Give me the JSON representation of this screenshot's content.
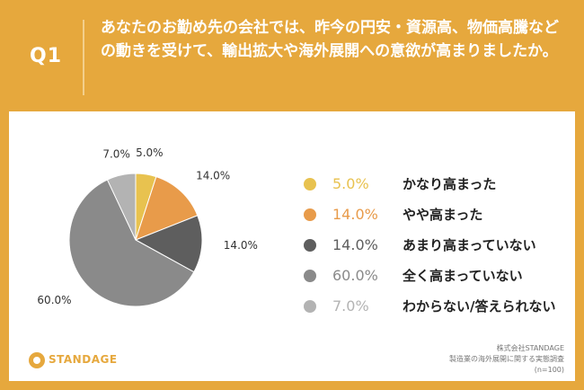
{
  "header": {
    "q_label": "Q1",
    "question": "あなたのお勤め先の会社では、昨今の円安・資源高、物価高騰などの動きを受けて、輸出拡大や海外展開への意欲が高まりましたか。"
  },
  "colors": {
    "background": "#e6a83d",
    "card": "#ffffff"
  },
  "chart_data": {
    "type": "pie",
    "slices": [
      {
        "label": "かなり高まった",
        "value": 5.0,
        "display": "5.0%",
        "color": "#e8c24f"
      },
      {
        "label": "やや高まった",
        "value": 14.0,
        "display": "14.0%",
        "color": "#e89b4a"
      },
      {
        "label": "あまり高まっていない",
        "value": 14.0,
        "display": "14.0%",
        "color": "#5e5e5e"
      },
      {
        "label": "全く高まっていない",
        "value": 60.0,
        "display": "60.0%",
        "color": "#8a8a8a"
      },
      {
        "label": "わからない/答えられない",
        "value": 7.0,
        "display": "7.0%",
        "color": "#b3b3b3"
      }
    ],
    "start_angle": "12 o'clock",
    "direction": "clockwise",
    "legend_placement": "right"
  },
  "legend": [
    {
      "pct": "5.0%",
      "label": "かなり高まった",
      "color": "#e8c24f"
    },
    {
      "pct": "14.0%",
      "label": "やや高まった",
      "color": "#e89b4a"
    },
    {
      "pct": "14.0%",
      "label": "あまり高まっていない",
      "color": "#5e5e5e"
    },
    {
      "pct": "60.0%",
      "label": "全く高まっていない",
      "color": "#8a8a8a"
    },
    {
      "pct": "7.0%",
      "label": "わからない/答えられない",
      "color": "#b3b3b3"
    }
  ],
  "logo": {
    "text": "STANDAGE"
  },
  "source": {
    "line1": "株式会社STANDAGE",
    "line2": "製造業の海外展開に関する実態調査",
    "line3": "(n=100)"
  }
}
